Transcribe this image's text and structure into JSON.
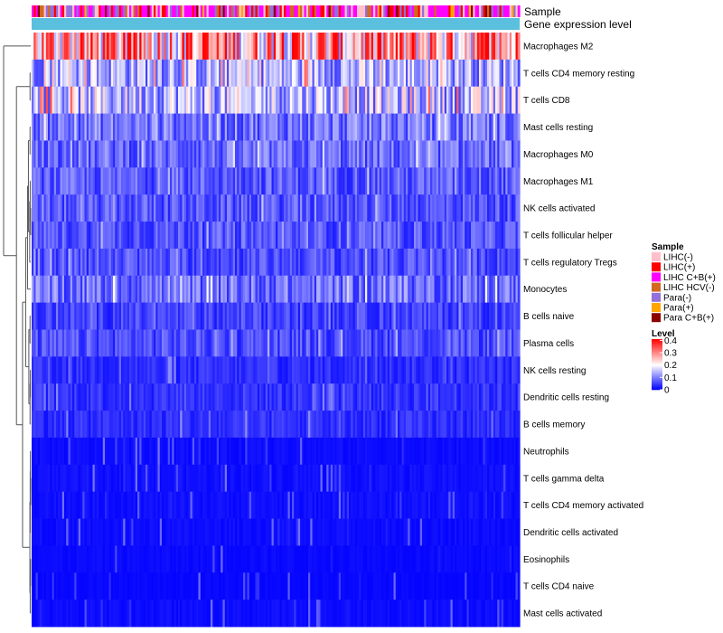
{
  "chart_data": {
    "type": "heatmap",
    "title": "",
    "rows": [
      {
        "label": "Macrophages M2",
        "mean": 0.27
      },
      {
        "label": "T cells CD4 memory resting",
        "mean": 0.14
      },
      {
        "label": "T cells CD8",
        "mean": 0.15
      },
      {
        "label": "Mast cells resting",
        "mean": 0.09
      },
      {
        "label": "Macrophages M0",
        "mean": 0.08
      },
      {
        "label": "Macrophages M1",
        "mean": 0.07
      },
      {
        "label": "NK cells activated",
        "mean": 0.065
      },
      {
        "label": "T cells follicular helper",
        "mean": 0.065
      },
      {
        "label": "T cells regulatory  Tregs",
        "mean": 0.06
      },
      {
        "label": "Monocytes",
        "mean": 0.085
      },
      {
        "label": "B cells naive",
        "mean": 0.05
      },
      {
        "label": "Plasma cells",
        "mean": 0.06
      },
      {
        "label": "NK cells resting",
        "mean": 0.035
      },
      {
        "label": "Dendritic cells resting",
        "mean": 0.04
      },
      {
        "label": "B cells memory",
        "mean": 0.035
      },
      {
        "label": "Neutrophils",
        "mean": 0.01
      },
      {
        "label": "T cells gamma delta",
        "mean": 0.012
      },
      {
        "label": "T cells CD4 memory activated",
        "mean": 0.012
      },
      {
        "label": "Dendritic cells activated",
        "mean": 0.01
      },
      {
        "label": "Eosinophils",
        "mean": 0.008
      },
      {
        "label": "T cells CD4 naive",
        "mean": 0.006
      },
      {
        "label": "Mast cells activated",
        "mean": 0.01
      }
    ],
    "n_samples": 240,
    "annotation_tracks": [
      {
        "label": "Sample",
        "name": "Sample"
      },
      {
        "label": "Gene expression level",
        "name": "Level"
      }
    ],
    "legends": {
      "sample": {
        "title": "Sample",
        "entries": [
          {
            "label": "LIHC(-)",
            "color": "#ffc0cb",
            "weight": 0.22
          },
          {
            "label": "LIHC(+)",
            "color": "#ff0000",
            "weight": 0.12
          },
          {
            "label": "LIHC C+B(+)",
            "color": "#ff00ff",
            "weight": 0.33
          },
          {
            "label": "LIHC HCV(-)",
            "color": "#d2691e",
            "weight": 0.05
          },
          {
            "label": "Para(-)",
            "color": "#9370db",
            "weight": 0.18
          },
          {
            "label": "Para(+)",
            "color": "#ffa500",
            "weight": 0.04
          },
          {
            "label": "Para C+B(+)",
            "color": "#8b0000",
            "weight": 0.06
          }
        ]
      },
      "level": {
        "title": "Level",
        "ticks": [
          "0.4",
          "0.3",
          "0.2",
          "0.1",
          "0"
        ],
        "tick_values": [
          0.4,
          0.3,
          0.2,
          0.1,
          0
        ],
        "range": [
          0,
          0.41
        ],
        "colors": {
          "low": "#0000ff",
          "mid": "#ffffff",
          "high": "#ff0000"
        },
        "midpoint": 0.2
      }
    },
    "gene_expression_level_color": "#5bc0de"
  }
}
